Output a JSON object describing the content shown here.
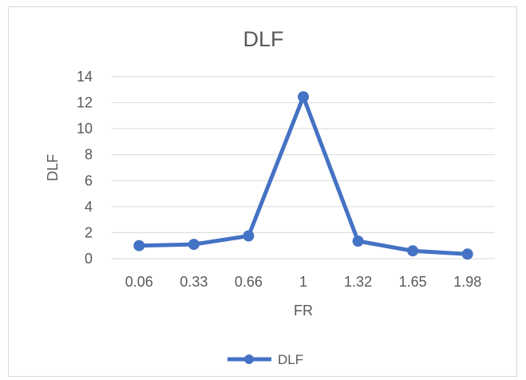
{
  "chart_data": {
    "type": "line",
    "title": "DLF",
    "xlabel": "FR",
    "ylabel": "DLF",
    "categories": [
      "0.06",
      "0.33",
      "0.66",
      "1",
      "1.32",
      "1.65",
      "1.98"
    ],
    "series": [
      {
        "name": "DLF",
        "values": [
          1.0,
          1.1,
          1.75,
          12.45,
          1.35,
          0.6,
          0.35
        ],
        "color": "#4472C4"
      }
    ],
    "ylim": [
      0,
      14
    ],
    "yticks": [
      "0",
      "2",
      "4",
      "6",
      "8",
      "10",
      "12",
      "14"
    ],
    "grid": true,
    "legend_position": "bottom"
  }
}
